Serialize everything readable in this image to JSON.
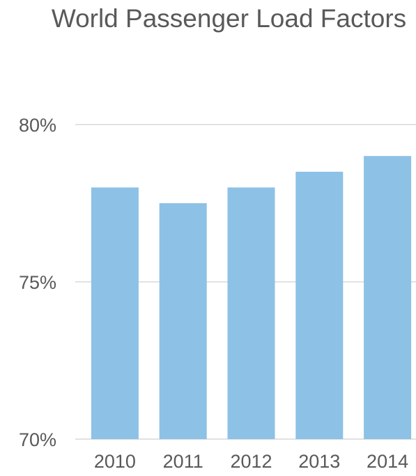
{
  "chart_data": {
    "type": "bar",
    "title": "World Passenger Load Factors",
    "categories": [
      "2010",
      "2011",
      "2012",
      "2013",
      "2014"
    ],
    "values": [
      78.0,
      77.5,
      78.0,
      78.5,
      79.0
    ],
    "ylim": [
      70,
      80
    ],
    "yticks": [
      70,
      75,
      80
    ],
    "ytick_labels": [
      "70%",
      "75%",
      "80%"
    ],
    "xlabel": "",
    "ylabel": "",
    "grid": true,
    "legend": "none",
    "colors": {
      "bar": "#8dc1e6",
      "grid": "#d9d9d9",
      "text": "#595959"
    }
  }
}
